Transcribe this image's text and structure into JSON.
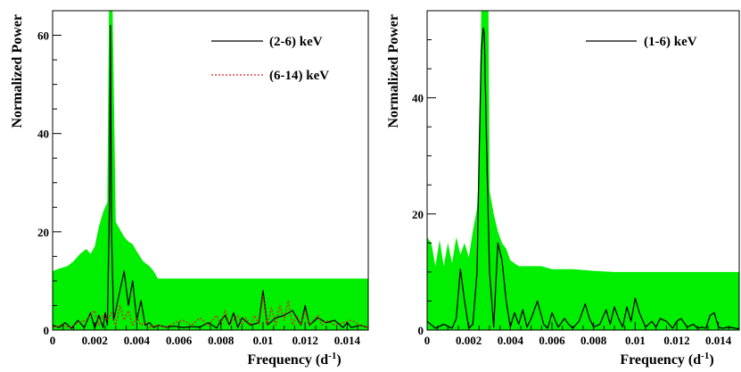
{
  "chart_data": [
    {
      "type": "line",
      "ylabel": "Normalized Power",
      "xlabel": "Frequency (d",
      "xlabel_sup": "-1",
      "xlabel_end": ")",
      "xlim": [
        0,
        0.015
      ],
      "ylim": [
        0,
        65
      ],
      "x_ticks": [
        0,
        0.002,
        0.004,
        0.006,
        0.008,
        0.01,
        0.012,
        0.014
      ],
      "x_tick_labels": [
        "0",
        "0.002",
        "0.004",
        "0.006",
        "0.008",
        "0.01",
        "0.012",
        "0.014"
      ],
      "y_ticks": [
        0,
        20,
        40,
        60
      ],
      "y_tick_labels": [
        "0",
        "20",
        "40",
        "60"
      ],
      "legend_position": "top-right",
      "green_color": "#00ee00",
      "green_band": {
        "x": [
          0,
          0.0003,
          0.0007,
          0.001,
          0.0013,
          0.0016,
          0.0018,
          0.002,
          0.0022,
          0.0024,
          0.0026,
          0.00268,
          0.00285,
          0.003,
          0.0032,
          0.0034,
          0.0036,
          0.0038,
          0.004,
          0.0043,
          0.0046,
          0.0048,
          0.005,
          0.015
        ],
        "upper": [
          12,
          12.5,
          13,
          14,
          15.5,
          16.5,
          15.5,
          17,
          21,
          24,
          26,
          65,
          65,
          22,
          20.5,
          19,
          18,
          17.5,
          16,
          14,
          13,
          12,
          10.5,
          10.5
        ]
      },
      "series": [
        {
          "name": "(2-6) keV",
          "color": "#000000",
          "dash": "none",
          "x": [
            0,
            0.0003,
            0.0006,
            0.0009,
            0.0012,
            0.0015,
            0.0018,
            0.002,
            0.0022,
            0.0024,
            0.0025,
            0.0026,
            0.0027,
            0.00275,
            0.0028,
            0.0029,
            0.003,
            0.0032,
            0.0034,
            0.0036,
            0.0038,
            0.004,
            0.0042,
            0.0044,
            0.0046,
            0.0048,
            0.005,
            0.0054,
            0.0058,
            0.0062,
            0.0066,
            0.007,
            0.0074,
            0.0078,
            0.008,
            0.0082,
            0.0084,
            0.0086,
            0.0088,
            0.009,
            0.0094,
            0.0098,
            0.01,
            0.0102,
            0.0106,
            0.011,
            0.0114,
            0.0118,
            0.012,
            0.0122,
            0.0126,
            0.013,
            0.0134,
            0.0138,
            0.014,
            0.0142,
            0.0146,
            0.015
          ],
          "y": [
            1,
            0.5,
            1.5,
            0.3,
            2,
            0.5,
            3.5,
            0.4,
            3,
            0.5,
            3.5,
            1,
            25,
            62,
            20,
            2,
            4,
            8,
            12,
            5,
            10,
            2,
            6,
            1,
            1.5,
            0.5,
            1,
            0.6,
            0.8,
            0.5,
            0.7,
            0.6,
            1.5,
            0.4,
            2,
            3,
            1,
            3.5,
            0.5,
            2.5,
            1,
            1.5,
            8,
            1,
            2.5,
            3,
            4,
            1,
            5,
            1,
            2.5,
            1.5,
            2,
            0.5,
            1.5,
            0.5,
            1,
            0.5
          ]
        },
        {
          "name": "(6-14) keV",
          "color": "#dd2222",
          "dash": "2,2",
          "x": [
            0,
            0.0004,
            0.0008,
            0.0012,
            0.0016,
            0.002,
            0.0022,
            0.0024,
            0.0026,
            0.0028,
            0.003,
            0.0032,
            0.0034,
            0.0036,
            0.0038,
            0.004,
            0.0042,
            0.0044,
            0.0046,
            0.005,
            0.0054,
            0.0058,
            0.0062,
            0.0066,
            0.007,
            0.0074,
            0.0078,
            0.008,
            0.0082,
            0.0084,
            0.0086,
            0.0088,
            0.009,
            0.0092,
            0.0094,
            0.0096,
            0.0098,
            0.01,
            0.0102,
            0.0104,
            0.0106,
            0.0108,
            0.011,
            0.0112,
            0.0114,
            0.0116,
            0.0118,
            0.012,
            0.0122,
            0.0124,
            0.0126,
            0.0128,
            0.013,
            0.0134,
            0.0138,
            0.0142,
            0.0146,
            0.015
          ],
          "y": [
            0.5,
            1,
            0.5,
            1.5,
            2,
            4,
            1,
            3,
            2,
            3.5,
            1,
            5,
            2,
            4,
            1,
            2.5,
            1,
            1.5,
            0.5,
            1,
            0.5,
            1.5,
            2,
            1,
            2.5,
            1,
            3,
            1,
            4,
            1,
            2,
            3,
            1,
            2.5,
            1,
            3,
            1,
            7,
            1,
            4.5,
            1,
            5,
            2,
            6,
            1,
            3,
            1,
            4,
            1,
            2,
            3,
            1,
            2,
            1,
            1.5,
            2,
            1,
            0.5
          ]
        }
      ]
    },
    {
      "type": "line",
      "ylabel": "Normalized Power",
      "xlabel": "Frequency (d",
      "xlabel_sup": "-1",
      "xlabel_end": ")",
      "xlim": [
        0,
        0.015
      ],
      "ylim": [
        0,
        55
      ],
      "x_ticks": [
        0,
        0.002,
        0.004,
        0.006,
        0.008,
        0.01,
        0.012,
        0.014
      ],
      "x_tick_labels": [
        "0",
        "0.002",
        "0.004",
        "0.006",
        "0.008",
        "0.01",
        "0.012",
        "0.014"
      ],
      "y_ticks": [
        0,
        20,
        40
      ],
      "y_tick_labels": [
        "0",
        "20",
        "40"
      ],
      "legend_position": "top-right",
      "green_color": "#00ee00",
      "green_band": {
        "x": [
          0,
          0.0002,
          0.0004,
          0.0006,
          0.0008,
          0.001,
          0.0012,
          0.0014,
          0.0016,
          0.0018,
          0.002,
          0.0022,
          0.0024,
          0.0025,
          0.0026,
          0.00295,
          0.003,
          0.0032,
          0.0034,
          0.0036,
          0.0038,
          0.004,
          0.0042,
          0.0044,
          0.0046,
          0.005,
          0.0055,
          0.006,
          0.007,
          0.008,
          0.009,
          0.01,
          0.011,
          0.012,
          0.013,
          0.014,
          0.015
        ],
        "upper": [
          16,
          15,
          11,
          15.5,
          11,
          15,
          11.5,
          16,
          13,
          15,
          12.5,
          17,
          21,
          28,
          55,
          55,
          24,
          20,
          17,
          15,
          14,
          12,
          11.5,
          11,
          11,
          11,
          11,
          10.5,
          10.5,
          10.2,
          10,
          10,
          10,
          10,
          10,
          10,
          10
        ]
      },
      "series": [
        {
          "name": "(1-6) keV",
          "color": "#000000",
          "dash": "none",
          "x": [
            0,
            0.0004,
            0.0008,
            0.0012,
            0.0014,
            0.0016,
            0.0018,
            0.002,
            0.0022,
            0.0024,
            0.0025,
            0.0026,
            0.0027,
            0.00275,
            0.0028,
            0.0029,
            0.003,
            0.0032,
            0.0034,
            0.0036,
            0.0038,
            0.004,
            0.0042,
            0.0044,
            0.0046,
            0.0048,
            0.005,
            0.0053,
            0.0056,
            0.0058,
            0.006,
            0.0063,
            0.0066,
            0.0068,
            0.007,
            0.0073,
            0.0076,
            0.0078,
            0.008,
            0.0083,
            0.0086,
            0.0088,
            0.009,
            0.0092,
            0.0094,
            0.0096,
            0.0098,
            0.01,
            0.0102,
            0.0105,
            0.0108,
            0.011,
            0.0112,
            0.0115,
            0.0118,
            0.012,
            0.0122,
            0.0125,
            0.0128,
            0.013,
            0.0132,
            0.0134,
            0.0136,
            0.0138,
            0.014,
            0.0142,
            0.0145,
            0.015
          ],
          "y": [
            1.5,
            0.3,
            1,
            0.3,
            2,
            10.5,
            5,
            0.3,
            1,
            10,
            30,
            48,
            52,
            51,
            42,
            25,
            10,
            0.5,
            15,
            12,
            5,
            0.5,
            3,
            1,
            3.5,
            0.5,
            2,
            5,
            1,
            0.3,
            3,
            0.5,
            2,
            1,
            0.3,
            1.5,
            4.5,
            2,
            0.5,
            1,
            3.5,
            1,
            4,
            2,
            0.5,
            4,
            1.5,
            5.5,
            3,
            0.5,
            1.5,
            0.5,
            2,
            1.5,
            0.3,
            1.5,
            2,
            0.5,
            1,
            0.3,
            0.5,
            0.3,
            2.5,
            3,
            0.5,
            0.3,
            0.5,
            0.2
          ]
        }
      ]
    }
  ]
}
